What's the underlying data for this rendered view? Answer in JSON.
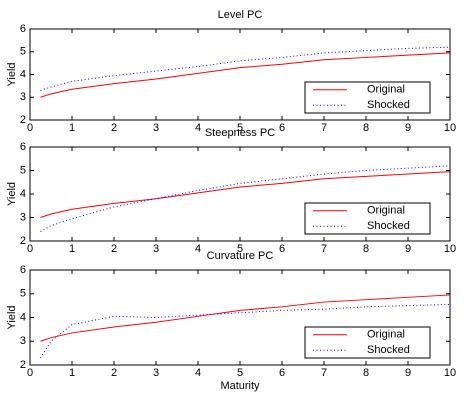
{
  "chart_data": [
    {
      "type": "line",
      "title": "Level PC",
      "y_label": "Yield",
      "x": [
        0.25,
        0.5,
        1,
        2,
        3,
        4,
        5,
        6,
        7,
        8,
        9,
        10
      ],
      "series": [
        {
          "name": "Original",
          "color": "#ff0000",
          "style": "solid",
          "values": [
            3.0,
            3.15,
            3.35,
            3.6,
            3.8,
            4.05,
            4.3,
            4.45,
            4.65,
            4.75,
            4.85,
            4.95
          ]
        },
        {
          "name": "Shocked",
          "color": "#0000ff",
          "style": "dotted",
          "values": [
            3.3,
            3.45,
            3.7,
            3.95,
            4.15,
            4.35,
            4.6,
            4.75,
            4.95,
            5.05,
            5.15,
            5.2
          ]
        }
      ],
      "xlim": [
        0,
        10
      ],
      "ylim": [
        2,
        6
      ],
      "xticks": [
        0,
        1,
        2,
        3,
        4,
        5,
        6,
        7,
        8,
        9,
        10
      ],
      "yticks": [
        2,
        3,
        4,
        5,
        6
      ],
      "legend": "lower right"
    },
    {
      "type": "line",
      "title": "Steepness PC",
      "y_label": "Yield",
      "x": [
        0.25,
        0.5,
        1,
        2,
        3,
        4,
        5,
        6,
        7,
        8,
        9,
        10
      ],
      "series": [
        {
          "name": "Original",
          "color": "#ff0000",
          "style": "solid",
          "values": [
            3.0,
            3.15,
            3.35,
            3.6,
            3.8,
            4.05,
            4.3,
            4.45,
            4.65,
            4.75,
            4.85,
            4.95
          ]
        },
        {
          "name": "Shocked",
          "color": "#0000ff",
          "style": "dotted",
          "values": [
            2.4,
            2.65,
            2.95,
            3.45,
            3.8,
            4.15,
            4.45,
            4.65,
            4.85,
            5.0,
            5.1,
            5.2
          ]
        }
      ],
      "xlim": [
        0,
        10
      ],
      "ylim": [
        2,
        6
      ],
      "xticks": [
        0,
        1,
        2,
        3,
        4,
        5,
        6,
        7,
        8,
        9,
        10
      ],
      "yticks": [
        2,
        3,
        4,
        5,
        6
      ],
      "legend": "lower right"
    },
    {
      "type": "line",
      "title": "Curvature PC",
      "y_label": "Yield",
      "x_label": "Maturity",
      "x": [
        0.25,
        0.5,
        1,
        2,
        3,
        4,
        5,
        6,
        7,
        8,
        9,
        10
      ],
      "series": [
        {
          "name": "Original",
          "color": "#ff0000",
          "style": "solid",
          "values": [
            3.0,
            3.15,
            3.35,
            3.6,
            3.8,
            4.05,
            4.3,
            4.45,
            4.65,
            4.75,
            4.85,
            4.95
          ]
        },
        {
          "name": "Shocked",
          "color": "#0000ff",
          "style": "dotted",
          "values": [
            2.3,
            3.0,
            3.7,
            4.05,
            4.0,
            4.1,
            4.2,
            4.3,
            4.35,
            4.45,
            4.5,
            4.55
          ]
        }
      ],
      "xlim": [
        0,
        10
      ],
      "ylim": [
        2,
        6
      ],
      "xticks": [
        0,
        1,
        2,
        3,
        4,
        5,
        6,
        7,
        8,
        9,
        10
      ],
      "yticks": [
        2,
        3,
        4,
        5,
        6
      ],
      "legend": "lower right"
    }
  ]
}
